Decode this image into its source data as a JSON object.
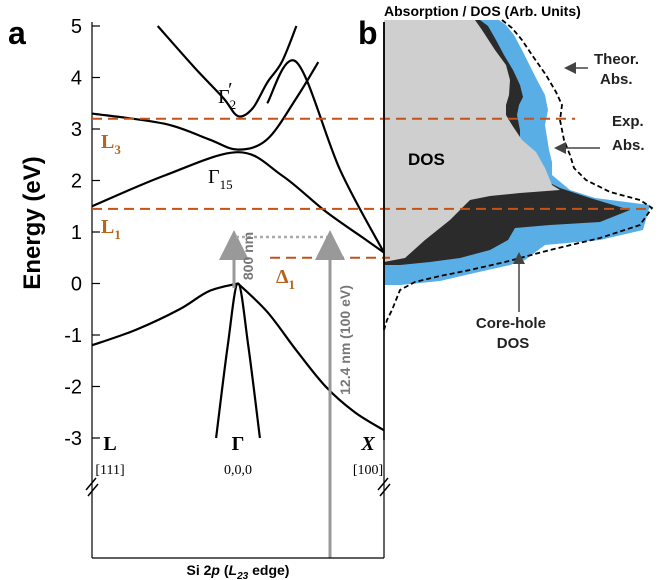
{
  "panel_a": {
    "label": "a",
    "ylabel": "Energy (eV)",
    "k_points": [
      {
        "name": "L",
        "coord": "[111]"
      },
      {
        "name": "Γ",
        "coord": "0,0,0"
      },
      {
        "name": "X",
        "coord": "[100]"
      }
    ],
    "levels": [
      {
        "name": "L",
        "sub": "3",
        "energy": 3.2
      },
      {
        "name": "L",
        "sub": "1",
        "energy": 1.45
      },
      {
        "name": "Δ",
        "sub": "1",
        "energy": 0.5
      }
    ],
    "band_labels": [
      {
        "name": "Γ",
        "sub": "2",
        "prime": "′"
      },
      {
        "name": "Γ",
        "sub": "15",
        "prime": ""
      }
    ],
    "arrow_800": {
      "text": "800 nm",
      "from_energy": 0,
      "to_energy": 1.0
    },
    "arrow_xuv": {
      "text": "12.4 nm (100 eV)"
    },
    "core_level": {
      "prefix": "Si 2",
      "italic": "p",
      "open": " (",
      "L": "L",
      "sub": "23",
      "rest": " edge)"
    }
  },
  "panel_b": {
    "label": "b",
    "title": "Absorption / DOS (Arb. Units)",
    "annotations": {
      "dos": "DOS",
      "theor_1": "Theor.",
      "theor_2": "Abs.",
      "exp_1": "Exp.",
      "exp_2": "Abs.",
      "core_1": "Core-hole",
      "core_2": "DOS"
    }
  },
  "colors": {
    "accent": "#b5651d",
    "dashed_lines": "#c0541c",
    "dos_fill": "#cfcfcf",
    "core_hole_fill": "#2b2b2b",
    "exp_abs_fill": "#5aaee6",
    "arrow": "#999999"
  },
  "chart_data": [
    {
      "type": "line",
      "title": "",
      "ylabel": "Energy (eV)",
      "ylim": [
        -3,
        5
      ],
      "yticks": [
        -3,
        -2,
        -1,
        0,
        1,
        2,
        3,
        4,
        5
      ],
      "xticklabels": [
        "L",
        "Γ",
        "X"
      ],
      "series": [
        {
          "x": [
            -1,
            -0.7,
            -0.4,
            -0.2,
            0
          ],
          "y": [
            -1.2,
            -0.9,
            -0.5,
            -0.15,
            0
          ]
        },
        {
          "x": [
            0,
            0.2,
            0.4,
            0.6,
            0.8,
            1
          ],
          "y": [
            0,
            -0.55,
            -1.3,
            -2.0,
            -2.5,
            -2.85
          ]
        },
        {
          "x": [
            -0.15,
            -0.07,
            0,
            0.07,
            0.15
          ],
          "y": [
            -3,
            -1.2,
            0,
            -1.2,
            -3
          ]
        },
        {
          "x": [
            -1,
            -0.5,
            0,
            0.3,
            0.6,
            0.85,
            1
          ],
          "y": [
            1.5,
            2.1,
            2.55,
            2.1,
            1.4,
            0.9,
            0.6
          ]
        },
        {
          "x": [
            -1,
            -0.5,
            -0.2,
            0,
            0.2,
            0.4,
            0.55
          ],
          "y": [
            3.3,
            3.1,
            2.8,
            2.6,
            2.8,
            3.6,
            4.3
          ]
        },
        {
          "x": [
            -0.55,
            -0.3,
            -0.1,
            0,
            0.1,
            0.2,
            0.3,
            0.4
          ],
          "y": [
            5,
            4.2,
            3.6,
            3.25,
            3.4,
            3.9,
            4.3,
            5
          ]
        },
        {
          "x": [
            0.2,
            0.4,
            0.7,
            1
          ],
          "y": [
            3.5,
            4.3,
            2.2,
            0.6
          ]
        }
      ]
    },
    {
      "type": "area",
      "title": "Absorption / DOS (Arb. Units)",
      "ylim": [
        -3,
        5
      ],
      "series": [
        {
          "name": "DOS"
        },
        {
          "name": "Core-hole DOS"
        },
        {
          "name": "Exp. Abs."
        },
        {
          "name": "Theor. Abs."
        }
      ]
    }
  ]
}
